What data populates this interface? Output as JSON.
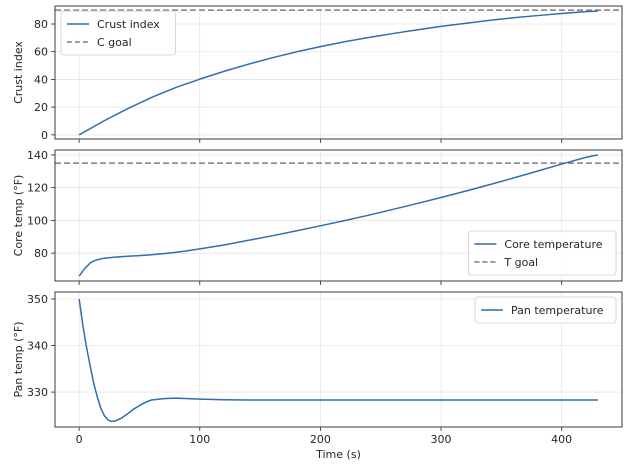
{
  "chart_data": [
    {
      "type": "line",
      "title": "",
      "xlabel": "",
      "ylabel": "Crust index",
      "xlim": [
        -20,
        450
      ],
      "ylim": [
        -3,
        93
      ],
      "xticks": [
        0,
        100,
        200,
        300,
        400
      ],
      "show_x_tick_labels": false,
      "yticks": [
        0,
        20,
        40,
        60,
        80
      ],
      "ytick_labels": [
        "0",
        "20",
        "40",
        "60",
        "80"
      ],
      "grid": true,
      "legend_position": "upper left",
      "series": [
        {
          "name": "Crust index",
          "style": "solid",
          "color": "#2f6fad",
          "x": [
            0,
            20,
            40,
            60,
            80,
            100,
            120,
            140,
            160,
            180,
            200,
            220,
            240,
            260,
            280,
            300,
            320,
            340,
            360,
            380,
            400,
            420,
            430
          ],
          "y": [
            0,
            9.8,
            18.8,
            27.0,
            34.1,
            40.2,
            45.8,
            50.9,
            55.6,
            59.9,
            63.7,
            67.2,
            70.3,
            73.1,
            75.8,
            78.3,
            80.5,
            82.6,
            84.5,
            86.1,
            87.6,
            88.9,
            89.4
          ]
        }
      ],
      "hlines": [
        {
          "name": "C goal",
          "y": 90,
          "style": "dashed",
          "color": "#7f7f7f"
        }
      ]
    },
    {
      "type": "line",
      "title": "",
      "xlabel": "",
      "ylabel": "Core temp (°F)",
      "xlim": [
        -20,
        450
      ],
      "ylim": [
        63,
        143
      ],
      "xticks": [
        0,
        100,
        200,
        300,
        400
      ],
      "show_x_tick_labels": false,
      "yticks": [
        80,
        100,
        120,
        140
      ],
      "ytick_labels": [
        "80",
        "100",
        "120",
        "140"
      ],
      "grid": true,
      "legend_position": "lower right",
      "series": [
        {
          "name": "Core temperature",
          "style": "solid",
          "color": "#2f6fad",
          "x": [
            0,
            5,
            10,
            15,
            20,
            25,
            30,
            40,
            50,
            60,
            70,
            80,
            90,
            100,
            120,
            140,
            160,
            180,
            200,
            220,
            240,
            260,
            280,
            300,
            320,
            340,
            360,
            380,
            400,
            420,
            430
          ],
          "y": [
            66,
            71,
            74.5,
            76,
            76.8,
            77.2,
            77.6,
            78.1,
            78.5,
            79.0,
            79.7,
            80.5,
            81.5,
            82.6,
            85.0,
            87.8,
            90.6,
            93.6,
            96.7,
            99.9,
            103.2,
            106.7,
            110.3,
            114.0,
            117.8,
            121.8,
            125.9,
            130.1,
            134.4,
            138.5,
            140
          ]
        }
      ],
      "hlines": [
        {
          "name": "T goal",
          "y": 135,
          "style": "dashed",
          "color": "#7f7f7f"
        }
      ]
    },
    {
      "type": "line",
      "title": "",
      "xlabel": "Time (s)",
      "ylabel": "Pan temp (°F)",
      "xlim": [
        -20,
        450
      ],
      "ylim": [
        322.5,
        351.5
      ],
      "xticks": [
        0,
        100,
        200,
        300,
        400
      ],
      "show_x_tick_labels": true,
      "xtick_labels": [
        "0",
        "100",
        "200",
        "300",
        "400"
      ],
      "yticks": [
        330,
        340,
        350
      ],
      "ytick_labels": [
        "330",
        "340",
        "350"
      ],
      "grid": true,
      "legend_position": "upper right",
      "series": [
        {
          "name": "Pan temperature",
          "style": "solid",
          "color": "#2f6fad",
          "x": [
            0,
            3,
            6,
            9,
            12,
            15,
            18,
            21,
            24,
            27,
            30,
            35,
            40,
            45,
            50,
            55,
            60,
            70,
            80,
            90,
            100,
            120,
            140,
            160,
            200,
            250,
            300,
            350,
            400,
            430
          ],
          "y": [
            350,
            344.5,
            339.8,
            335.8,
            332.0,
            329.0,
            326.5,
            324.9,
            324.0,
            323.7,
            323.8,
            324.4,
            325.3,
            326.3,
            327.1,
            327.8,
            328.3,
            328.6,
            328.7,
            328.6,
            328.5,
            328.35,
            328.3,
            328.3,
            328.3,
            328.3,
            328.3,
            328.3,
            328.3,
            328.3
          ]
        }
      ],
      "hlines": []
    }
  ],
  "colors": {
    "line": "#2f6fad",
    "goal_line": "#7f7f7f",
    "grid": "#e6e6e6",
    "axes": "#262626",
    "legend_border": "#cccccc"
  }
}
